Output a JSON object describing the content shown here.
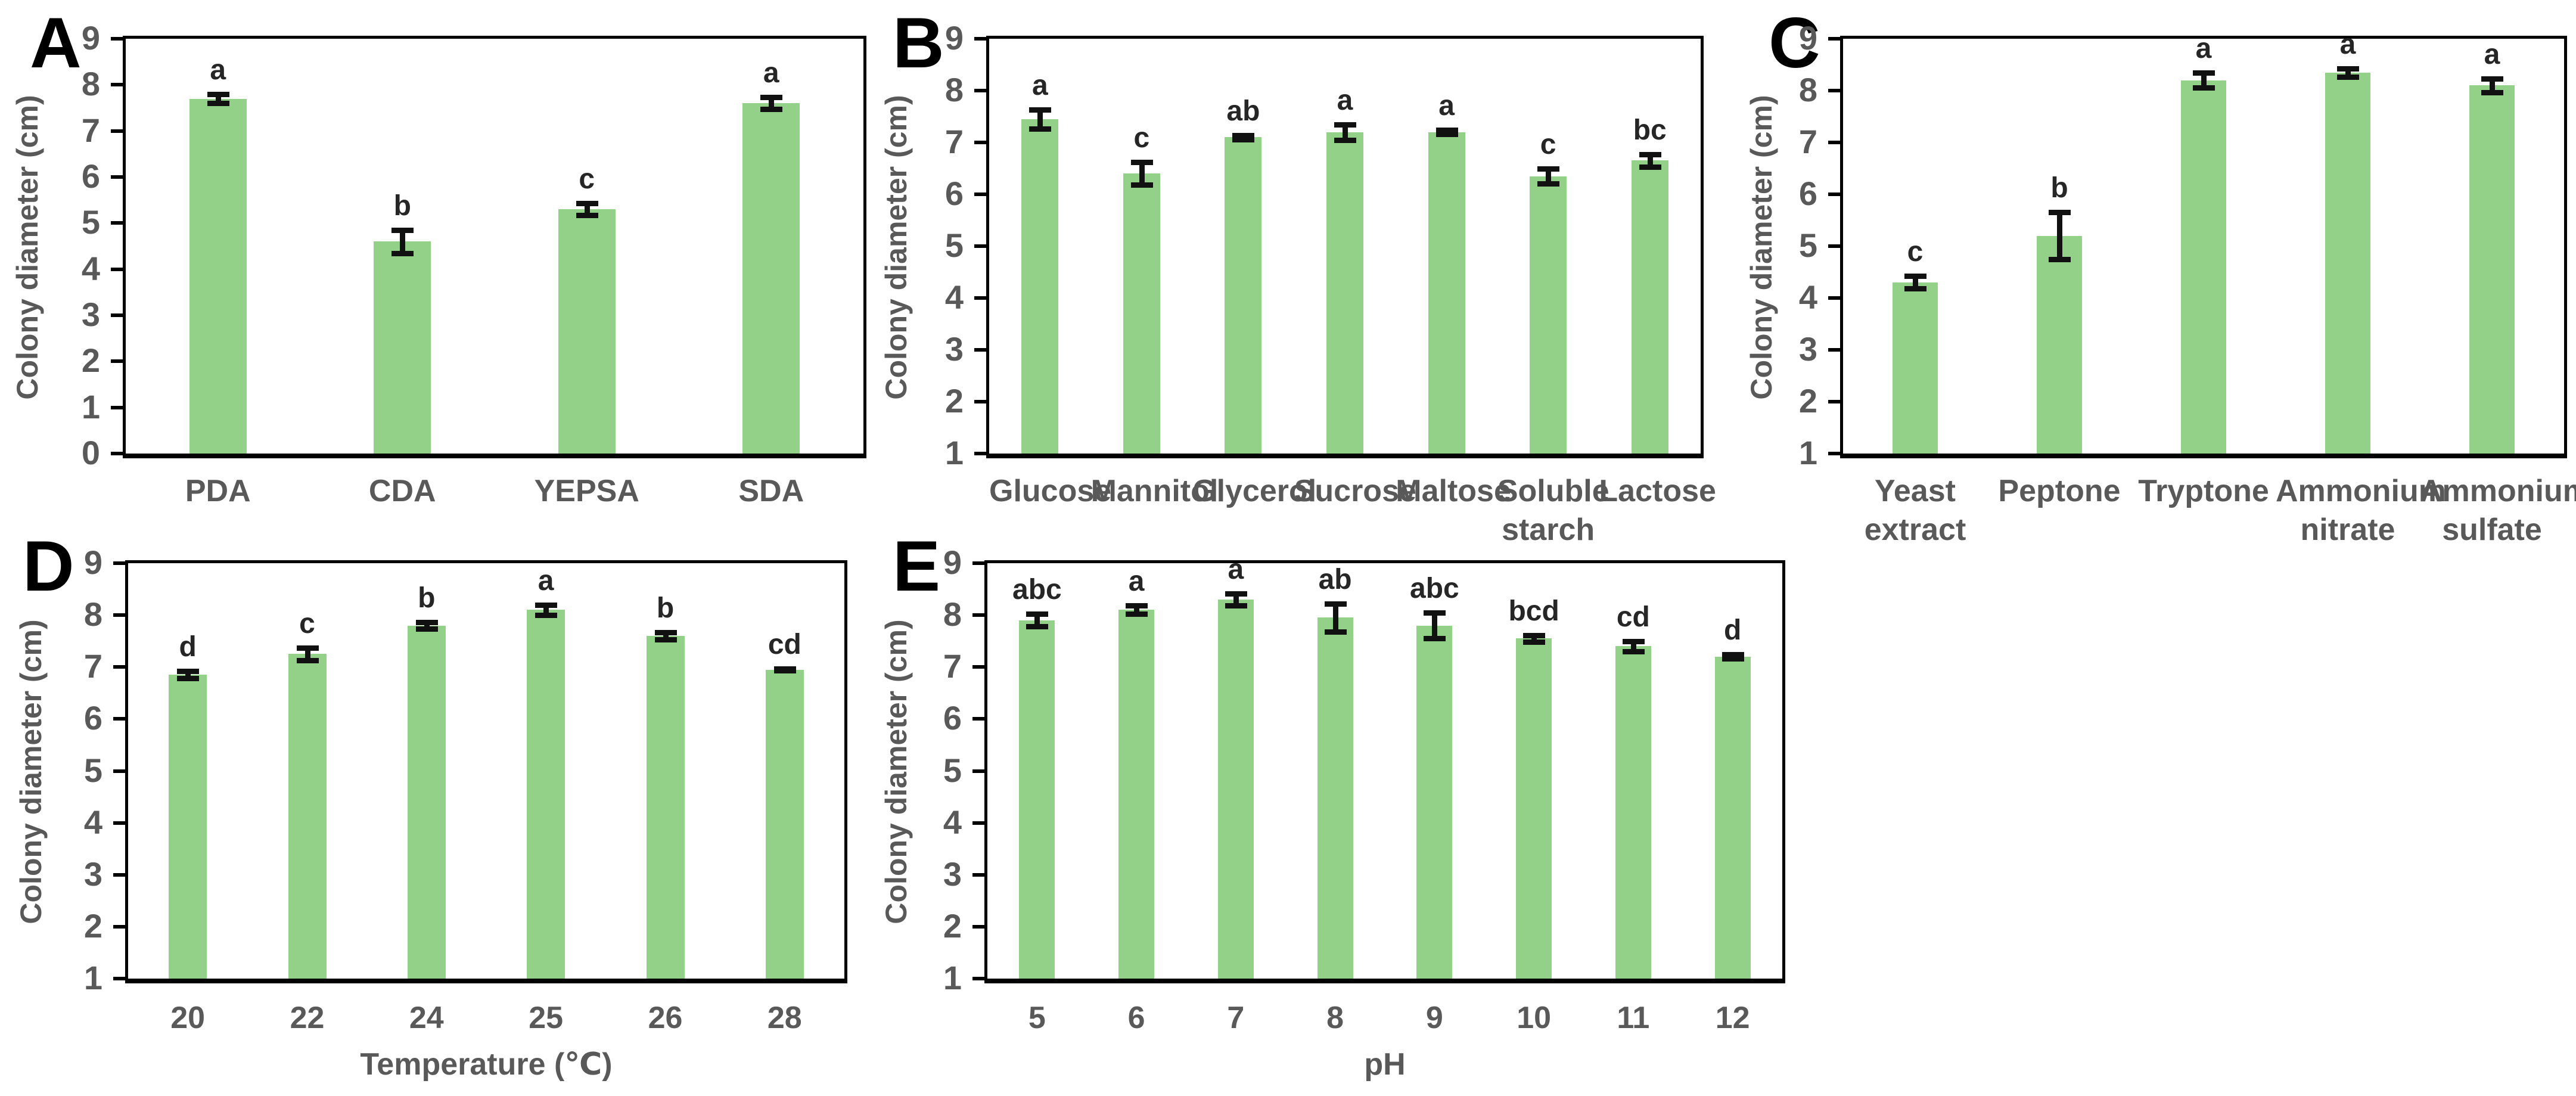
{
  "figure": {
    "colors": {
      "bar_fill": "#93d189",
      "error_bar": "#111111",
      "axis": "#000000",
      "tick_text": "#595959",
      "sig_letter_text": "#262626"
    },
    "background": "#ffffff",
    "shared_y_axis_label": "Colony diameter (cm)"
  },
  "chart_data": [
    {
      "panel": "A",
      "type": "bar",
      "title": "",
      "ylabel": "Colony diameter (cm)",
      "xlabel": "",
      "ylim": [
        0,
        9
      ],
      "ytick_step": 1,
      "grid": false,
      "legend": "none",
      "categories": [
        "PDA",
        "CDA",
        "YEPSA",
        "SDA"
      ],
      "values": [
        7.7,
        4.6,
        5.3,
        7.6
      ],
      "errors": [
        0.1,
        0.25,
        0.13,
        0.13
      ],
      "sig_letters": [
        "a",
        "b",
        "c",
        "a"
      ]
    },
    {
      "panel": "B",
      "type": "bar",
      "title": "",
      "ylabel": "Colony diameter (cm)",
      "xlabel": "",
      "ylim": [
        1,
        9
      ],
      "ytick_step": 1,
      "grid": false,
      "legend": "none",
      "categories": [
        "Glucose",
        "Mannitol",
        "Glycerol",
        "Sucrose",
        "Maltose",
        "Soluble starch",
        "Lactose"
      ],
      "values": [
        7.45,
        6.4,
        7.1,
        7.2,
        7.2,
        6.35,
        6.65
      ],
      "errors": [
        0.18,
        0.22,
        0.04,
        0.15,
        0.04,
        0.14,
        0.12
      ],
      "sig_letters": [
        "a",
        "c",
        "ab",
        "a",
        "a",
        "c",
        "bc"
      ]
    },
    {
      "panel": "C",
      "type": "bar",
      "title": "",
      "ylabel": "Colony diameter (cm)",
      "xlabel": "",
      "ylim": [
        1,
        9
      ],
      "ytick_step": 1,
      "grid": false,
      "legend": "none",
      "categories": [
        "Yeast extract",
        "Peptone",
        "Tryptone",
        "Ammonium nitrate",
        "Ammonium sulfate"
      ],
      "values": [
        4.3,
        5.2,
        8.2,
        8.35,
        8.1
      ],
      "errors": [
        0.12,
        0.45,
        0.14,
        0.08,
        0.13
      ],
      "sig_letters": [
        "c",
        "b",
        "a",
        "a",
        "a"
      ]
    },
    {
      "panel": "D",
      "type": "bar",
      "title": "",
      "ylabel": "Colony diameter (cm)",
      "xlabel": "Temperature (℃)",
      "ylim": [
        1,
        9
      ],
      "ytick_step": 1,
      "grid": false,
      "legend": "none",
      "categories": [
        "20",
        "22",
        "24",
        "25",
        "26",
        "28"
      ],
      "values": [
        6.85,
        7.25,
        7.8,
        8.1,
        7.6,
        6.95
      ],
      "errors": [
        0.07,
        0.12,
        0.06,
        0.1,
        0.07,
        0.02
      ],
      "sig_letters": [
        "d",
        "c",
        "b",
        "a",
        "b",
        "cd"
      ]
    },
    {
      "panel": "E",
      "type": "bar",
      "title": "",
      "ylabel": "Colony diameter (cm)",
      "xlabel": "pH",
      "ylim": [
        1,
        9
      ],
      "ytick_step": 1,
      "grid": false,
      "legend": "none",
      "categories": [
        "5",
        "6",
        "7",
        "8",
        "9",
        "10",
        "11",
        "12"
      ],
      "values": [
        7.9,
        8.1,
        8.3,
        7.95,
        7.8,
        7.55,
        7.4,
        7.2
      ],
      "errors": [
        0.12,
        0.08,
        0.12,
        0.27,
        0.25,
        0.06,
        0.1,
        0.04
      ],
      "sig_letters": [
        "abc",
        "a",
        "a",
        "ab",
        "abc",
        "bcd",
        "cd",
        "d"
      ]
    }
  ]
}
